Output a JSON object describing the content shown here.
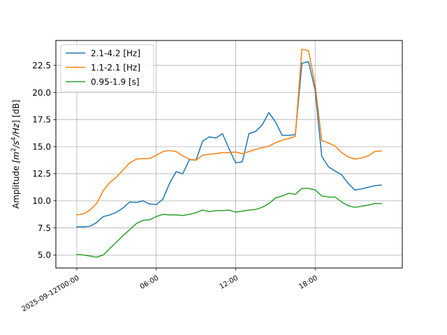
{
  "chart_data": {
    "type": "line",
    "ylabel_prefix": "Amplitude ",
    "ylabel_unit_parts": [
      "[m",
      "2",
      "/s",
      "4",
      "/Hz",
      "] [dB]"
    ],
    "ylim": [
      3.8,
      24.8
    ],
    "xlim": [
      -1.58,
      24.58
    ],
    "grid": true,
    "legend_position": "top-left",
    "xticks": [
      {
        "value": 0,
        "label": "2025-09-12T00:00"
      },
      {
        "value": 6,
        "label": "06:00"
      },
      {
        "value": 12,
        "label": "12:00"
      },
      {
        "value": 18,
        "label": "18:00"
      }
    ],
    "yticks": [
      5.0,
      7.5,
      10.0,
      12.5,
      15.0,
      17.5,
      20.0,
      22.5
    ],
    "ytick_labels": [
      "5.0",
      "7.5",
      "10.0",
      "12.5",
      "15.0",
      "17.5",
      "20.0",
      "22.5"
    ],
    "x": [
      0,
      0.5,
      1,
      1.5,
      2,
      2.5,
      3,
      3.5,
      4,
      4.5,
      5,
      5.5,
      6,
      6.5,
      7,
      7.5,
      8,
      8.5,
      9,
      9.5,
      10,
      10.5,
      11,
      11.5,
      12,
      12.5,
      13,
      13.5,
      14,
      14.5,
      15,
      15.5,
      16,
      16.5,
      17,
      17.5,
      18,
      18.5,
      19,
      19.5,
      20,
      20.5,
      21,
      21.5,
      22,
      22.5,
      23
    ],
    "series": [
      {
        "name": "2.1-4.2 [Hz]",
        "color": "#1f77b4",
        "values": [
          7.6,
          7.6,
          7.65,
          8.0,
          8.55,
          8.7,
          8.95,
          9.35,
          9.9,
          9.85,
          10.0,
          9.7,
          9.65,
          10.15,
          11.6,
          12.7,
          12.5,
          13.8,
          13.75,
          15.5,
          15.9,
          15.8,
          16.2,
          14.8,
          13.5,
          13.6,
          16.2,
          16.4,
          17.0,
          18.15,
          17.3,
          16.05,
          16.05,
          16.1,
          22.7,
          22.85,
          20.2,
          14.1,
          13.15,
          12.75,
          12.4,
          11.6,
          11.0,
          11.1,
          11.25,
          11.4,
          11.45
        ]
      },
      {
        "name": "1.1-2.1 [Hz]",
        "color": "#ff7f0e",
        "values": [
          8.7,
          8.8,
          9.15,
          9.75,
          10.95,
          11.7,
          12.2,
          12.85,
          13.5,
          13.85,
          13.9,
          13.9,
          14.2,
          14.55,
          14.65,
          14.55,
          14.15,
          13.85,
          13.75,
          14.2,
          14.3,
          14.35,
          14.45,
          14.45,
          14.5,
          14.35,
          14.55,
          14.75,
          14.9,
          15.05,
          15.35,
          15.6,
          15.75,
          15.95,
          24.0,
          23.85,
          20.7,
          15.55,
          15.35,
          15.05,
          14.45,
          14.05,
          13.85,
          13.95,
          14.15,
          14.55,
          14.6
        ]
      },
      {
        "name": "0.95-1.9 [s]",
        "color": "#2ca02c",
        "values": [
          5.05,
          5.0,
          4.9,
          4.8,
          5.0,
          5.6,
          6.2,
          6.8,
          7.35,
          7.9,
          8.2,
          8.25,
          8.55,
          8.75,
          8.7,
          8.7,
          8.65,
          8.75,
          8.9,
          9.15,
          9.0,
          9.1,
          9.1,
          9.15,
          8.95,
          9.05,
          9.15,
          9.2,
          9.4,
          9.75,
          10.25,
          10.45,
          10.7,
          10.6,
          11.15,
          11.15,
          11.0,
          10.45,
          10.35,
          10.35,
          9.9,
          9.55,
          9.4,
          9.5,
          9.6,
          9.75,
          9.75
        ]
      }
    ]
  }
}
